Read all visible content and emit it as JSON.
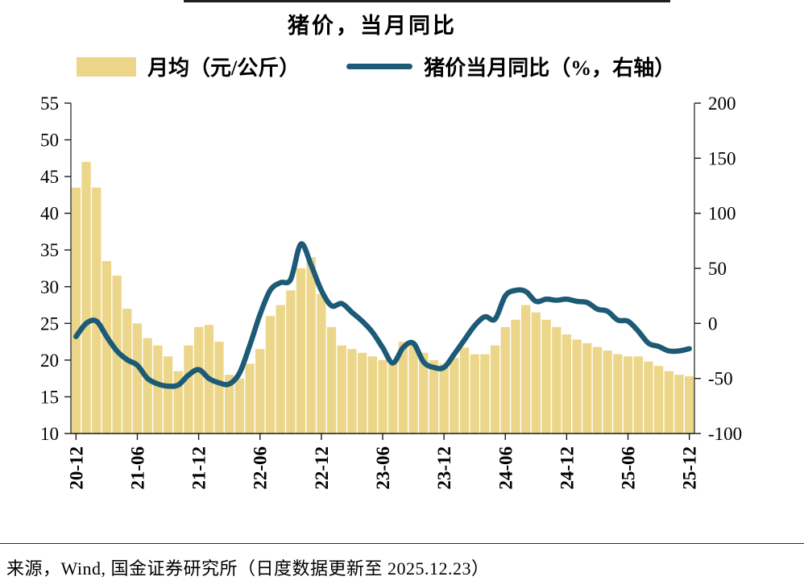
{
  "title": "猪价，当月同比",
  "legend": {
    "bar": {
      "label": "月均（元/公斤）",
      "color": "#ECD689"
    },
    "line": {
      "label": "猪价当月同比（%，右轴）",
      "color": "#1C5A76"
    }
  },
  "footer": {
    "source": "来源，Wind, 国金证券研究所（日度数据更新至 2025.12.23）"
  },
  "chart_data": {
    "type": "combo",
    "title": "猪价，当月同比",
    "legend_position": "top",
    "grid": false,
    "months": [
      "20-12",
      "21-01",
      "21-02",
      "21-03",
      "21-04",
      "21-05",
      "21-06",
      "21-07",
      "21-08",
      "21-09",
      "21-10",
      "21-11",
      "21-12",
      "22-01",
      "22-02",
      "22-03",
      "22-04",
      "22-05",
      "22-06",
      "22-07",
      "22-08",
      "22-09",
      "22-10",
      "22-11",
      "22-12",
      "23-01",
      "23-02",
      "23-03",
      "23-04",
      "23-05",
      "23-06",
      "23-07",
      "23-08",
      "23-09",
      "23-10",
      "23-11",
      "23-12",
      "24-01",
      "24-02",
      "24-03",
      "24-04",
      "24-05",
      "24-06",
      "24-07",
      "24-08",
      "24-09",
      "24-10",
      "24-11",
      "24-12",
      "25-01",
      "25-02",
      "25-03",
      "25-04",
      "25-05",
      "25-06",
      "25-07",
      "25-08",
      "25-09",
      "25-10",
      "25-11",
      "25-12"
    ],
    "x_tick_labels": [
      "20-12",
      "21-06",
      "21-12",
      "22-06",
      "22-12",
      "23-06",
      "23-12",
      "24-06",
      "24-12",
      "25-06",
      "25-12"
    ],
    "series": [
      {
        "name": "月均（元/公斤）",
        "type": "bar",
        "axis": "left",
        "color": "#ECD689",
        "values": [
          43.5,
          47,
          43.5,
          33.5,
          31.5,
          27,
          25,
          23,
          22,
          20.5,
          18.5,
          22,
          24.5,
          24.8,
          22.5,
          18,
          17.5,
          19.5,
          21.5,
          26,
          27.5,
          29.5,
          32.5,
          34,
          29,
          24.5,
          22,
          21.5,
          21,
          20.5,
          20,
          19.5,
          22.5,
          22.3,
          21,
          20,
          19.5,
          20.3,
          21.7,
          20.8,
          20.8,
          22,
          24.5,
          25.5,
          27.5,
          26.5,
          25.5,
          24.5,
          23.5,
          22.8,
          22.3,
          21.8,
          21.3,
          20.8,
          20.5,
          20.5,
          19.8,
          19.2,
          18.5,
          18,
          17.8
        ]
      },
      {
        "name": "猪价当月同比（%，右轴）",
        "type": "line",
        "axis": "right",
        "color": "#1C5A76",
        "values": [
          -12,
          0,
          2,
          -12,
          -25,
          -33,
          -38,
          -50,
          -55,
          -57,
          -56,
          -47,
          -42,
          -50,
          -54,
          -55,
          -45,
          -20,
          8,
          30,
          37,
          40,
          72,
          53,
          30,
          16,
          18,
          10,
          2,
          -8,
          -22,
          -36,
          -22,
          -18,
          -35,
          -40,
          -40,
          -28,
          -15,
          -2,
          6,
          4,
          25,
          30,
          29,
          20,
          22,
          21,
          22,
          20,
          19,
          13,
          11,
          3,
          2,
          -7,
          -18,
          -21,
          -25,
          -25,
          -23
        ]
      }
    ],
    "left_axis": {
      "min": 10,
      "max": 55,
      "ticks": [
        10,
        15,
        20,
        25,
        30,
        35,
        40,
        45,
        50,
        55
      ]
    },
    "right_axis": {
      "min": -100,
      "max": 200,
      "ticks": [
        -100,
        -50,
        0,
        50,
        100,
        150,
        200
      ]
    }
  }
}
